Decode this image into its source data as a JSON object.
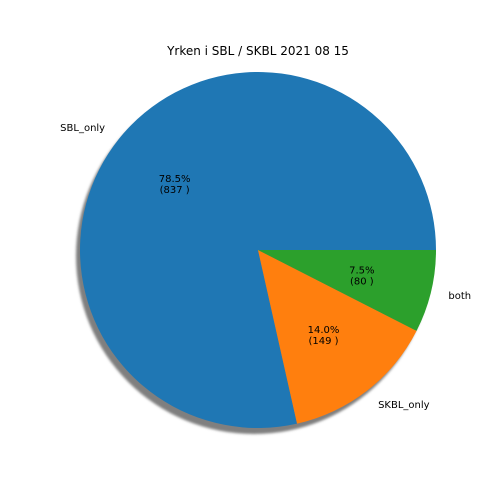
{
  "chart_data": {
    "type": "pie",
    "title": "Yrken i SBL / SKBL 2021 08 15",
    "slices": [
      {
        "label": "SBL_only",
        "value": 837,
        "percent_label": "78.5%",
        "count_label": "(837 )",
        "color": "#1f77b4"
      },
      {
        "label": "SKBL_only",
        "value": 149,
        "percent_label": "14.0%",
        "count_label": "(149 )",
        "color": "#ff7f0e"
      },
      {
        "label": "both",
        "value": 80,
        "percent_label": "7.5%",
        "count_label": "(80 )",
        "color": "#2ca02c"
      }
    ],
    "start_angle_deg": 0,
    "direction": "counterclockwise",
    "shadow": true
  }
}
